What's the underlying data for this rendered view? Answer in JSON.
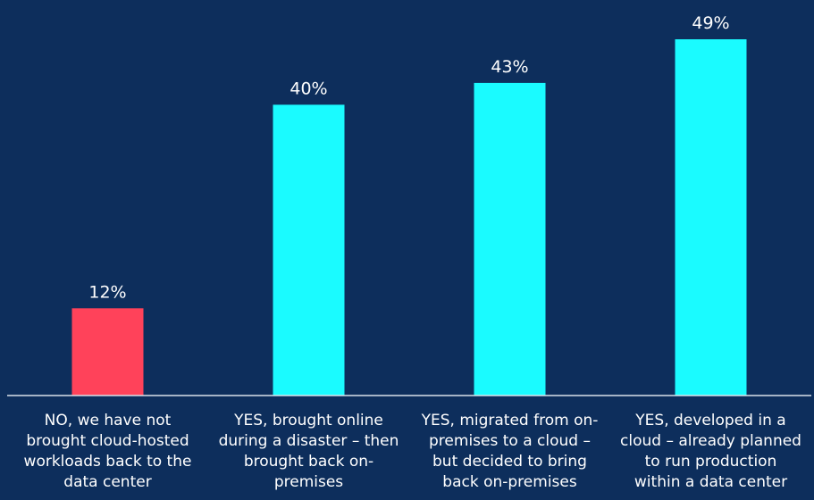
{
  "chart_data": {
    "type": "bar",
    "categories": [
      [
        "NO, we have not",
        "brought cloud-hosted",
        "workloads back to the",
        "data center"
      ],
      [
        "YES, brought online",
        "during a disaster – then",
        "brought back on-",
        "premises"
      ],
      [
        "YES, migrated from on-",
        "premises to a cloud –",
        "but decided to bring",
        "back on-premises"
      ],
      [
        "YES, developed in a",
        "cloud – already planned",
        "to run production",
        "within a data center"
      ]
    ],
    "values": [
      12,
      40,
      43,
      49
    ],
    "value_labels": [
      "12%",
      "40%",
      "43%",
      "49%"
    ],
    "bar_colors": [
      "#ff425a",
      "#1afbff",
      "#1afbff",
      "#1afbff"
    ],
    "ylim": [
      0,
      49
    ],
    "grid": false,
    "legend": "none",
    "title": "",
    "xlabel": "",
    "ylabel": ""
  },
  "colors": {
    "background": "#0d2e5c",
    "axis": "#d9e1ea",
    "text": "#ffffff"
  }
}
